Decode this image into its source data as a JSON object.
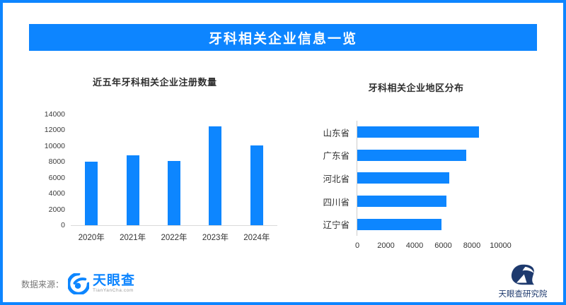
{
  "page": {
    "title": "牙科相关企业信息一览",
    "accent_color": "#0d85ff",
    "navy_color": "#1e3a6e"
  },
  "footer": {
    "source_label": "数据来源：",
    "source_logo_text": "天眼查",
    "source_logo_sub": "TianYanCha.com",
    "source_logo_icon": "tianyancha-eye-swirl",
    "right_logo_text": "天眼查研究院",
    "right_logo_icon": "tianyancha-institute-eye"
  },
  "chart_data": [
    {
      "type": "bar",
      "orientation": "vertical",
      "title": "近五年牙科相关企业注册数量",
      "categories": [
        "2020年",
        "2021年",
        "2022年",
        "2023年",
        "2024年"
      ],
      "values": [
        8000,
        8800,
        8100,
        12500,
        10100
      ],
      "xlabel": "",
      "ylabel": "",
      "ylim": [
        0,
        14000
      ],
      "yticks": [
        0,
        2000,
        4000,
        6000,
        8000,
        10000,
        12000,
        14000
      ],
      "bar_color": "#0d86ff",
      "grid": false,
      "legend": "none"
    },
    {
      "type": "bar",
      "orientation": "horizontal",
      "title": "牙科相关企业地区分布",
      "categories": [
        "山东省",
        "广东省",
        "河北省",
        "四川省",
        "辽宁省"
      ],
      "values": [
        8500,
        7600,
        6400,
        6200,
        5900
      ],
      "xlabel": "",
      "ylabel": "",
      "xlim": [
        0,
        12000
      ],
      "xticks": [
        0,
        2000,
        4000,
        6000,
        8000,
        10000
      ],
      "bar_color": "#0d86ff",
      "grid": false,
      "legend": "none"
    }
  ]
}
